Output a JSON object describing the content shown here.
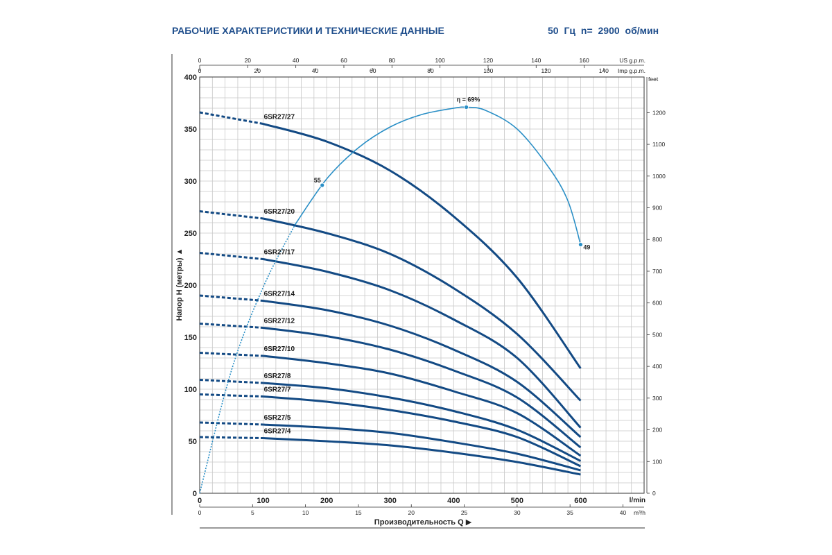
{
  "header": {
    "title": "РАБОЧИЕ ХАРАКТЕРИСТИКИ И ТЕХНИЧЕСКИЕ ДАННЫЕ",
    "subtitle": "50 Гц    n= 2900 об/мин"
  },
  "colors": {
    "pump_curve": "#134a84",
    "efficiency_curve": "#2a8fc6",
    "grid": "#c8c8c8",
    "axis": "#333333",
    "title": "#1f4e8c"
  },
  "chart_data": {
    "type": "line",
    "ylabel": "Напор H (метры)",
    "ylabel_arrow": "▲",
    "xlabel": "Производительность Q",
    "xlabel_arrow": "▶",
    "xlim": [
      0,
      700
    ],
    "ylim": [
      0,
      400
    ],
    "grid": true,
    "axes": {
      "x_lmin": {
        "unit": "l/min",
        "ticks": [
          0,
          100,
          200,
          300,
          400,
          500,
          600
        ]
      },
      "x_m3h": {
        "unit": "m³/h",
        "ticks": [
          0,
          5,
          10,
          15,
          20,
          25,
          30,
          35,
          40
        ],
        "factor_to_lmin": 16.6667
      },
      "x_usgpm": {
        "unit": "US g.p.m.",
        "ticks": [
          0,
          20,
          40,
          60,
          80,
          100,
          120,
          140,
          160
        ],
        "factor_to_lmin": 3.78541
      },
      "x_impgpm": {
        "unit": "Imp g.p.m.",
        "ticks": [
          0,
          20,
          40,
          60,
          80,
          100,
          120,
          140
        ],
        "factor_to_lmin": 4.54609
      },
      "y_m": {
        "unit": "м",
        "ticks": [
          0,
          50,
          100,
          150,
          200,
          250,
          300,
          350,
          400
        ]
      },
      "y_feet": {
        "unit": "feet",
        "ticks": [
          0,
          100,
          200,
          300,
          400,
          500,
          600,
          700,
          800,
          900,
          1000,
          1100,
          1200
        ],
        "factor_to_m": 0.3048
      }
    },
    "series": [
      {
        "name": "6SR27/27",
        "x": [
          0,
          100,
          200,
          300,
          400,
          500,
          600
        ],
        "y": [
          366,
          355,
          338,
          310,
          266,
          207,
          120
        ]
      },
      {
        "name": "6SR27/20",
        "x": [
          0,
          100,
          200,
          300,
          400,
          500,
          600
        ],
        "y": [
          271,
          264,
          250,
          230,
          197,
          153,
          89
        ]
      },
      {
        "name": "6SR27/17",
        "x": [
          0,
          100,
          200,
          300,
          400,
          500,
          600
        ],
        "y": [
          231,
          225,
          213,
          195,
          167,
          130,
          63
        ]
      },
      {
        "name": "6SR27/14",
        "x": [
          0,
          100,
          200,
          300,
          400,
          500,
          600
        ],
        "y": [
          190,
          185,
          176,
          161,
          138,
          107,
          54
        ]
      },
      {
        "name": "6SR27/12",
        "x": [
          0,
          100,
          200,
          300,
          400,
          500,
          600
        ],
        "y": [
          163,
          159,
          151,
          138,
          118,
          92,
          44
        ]
      },
      {
        "name": "6SR27/10",
        "x": [
          0,
          100,
          200,
          300,
          400,
          500,
          600
        ],
        "y": [
          135,
          132,
          125,
          115,
          98,
          77,
          36
        ]
      },
      {
        "name": "6SR27/8",
        "x": [
          0,
          100,
          200,
          300,
          400,
          500,
          600
        ],
        "y": [
          109,
          106,
          101,
          92,
          79,
          61,
          31
        ]
      },
      {
        "name": "6SR27/7",
        "x": [
          0,
          100,
          200,
          300,
          400,
          500,
          600
        ],
        "y": [
          95,
          93,
          88,
          80,
          69,
          54,
          26
        ]
      },
      {
        "name": "6SR27/5",
        "x": [
          0,
          100,
          200,
          300,
          400,
          500,
          600
        ],
        "y": [
          68,
          66,
          63,
          58,
          49,
          38,
          22
        ]
      },
      {
        "name": "6SR27/4",
        "x": [
          0,
          100,
          200,
          300,
          400,
          500,
          600
        ],
        "y": [
          54,
          53,
          50,
          46,
          39,
          30,
          18
        ]
      }
    ],
    "dashed_until_x": 100,
    "efficiency": {
      "x": [
        0,
        50,
        100,
        150,
        200,
        250,
        300,
        350,
        400,
        420,
        450,
        500,
        550,
        580,
        600
      ],
      "y": [
        0,
        118,
        198,
        258,
        302,
        332,
        352,
        364,
        370,
        371,
        368,
        350,
        313,
        281,
        239
      ],
      "points": [
        {
          "x": 193,
          "y": 296,
          "label": "55"
        },
        {
          "x": 420,
          "y": 371,
          "label": "η = 69%"
        },
        {
          "x": 600,
          "y": 239,
          "label": "49"
        }
      ]
    }
  }
}
